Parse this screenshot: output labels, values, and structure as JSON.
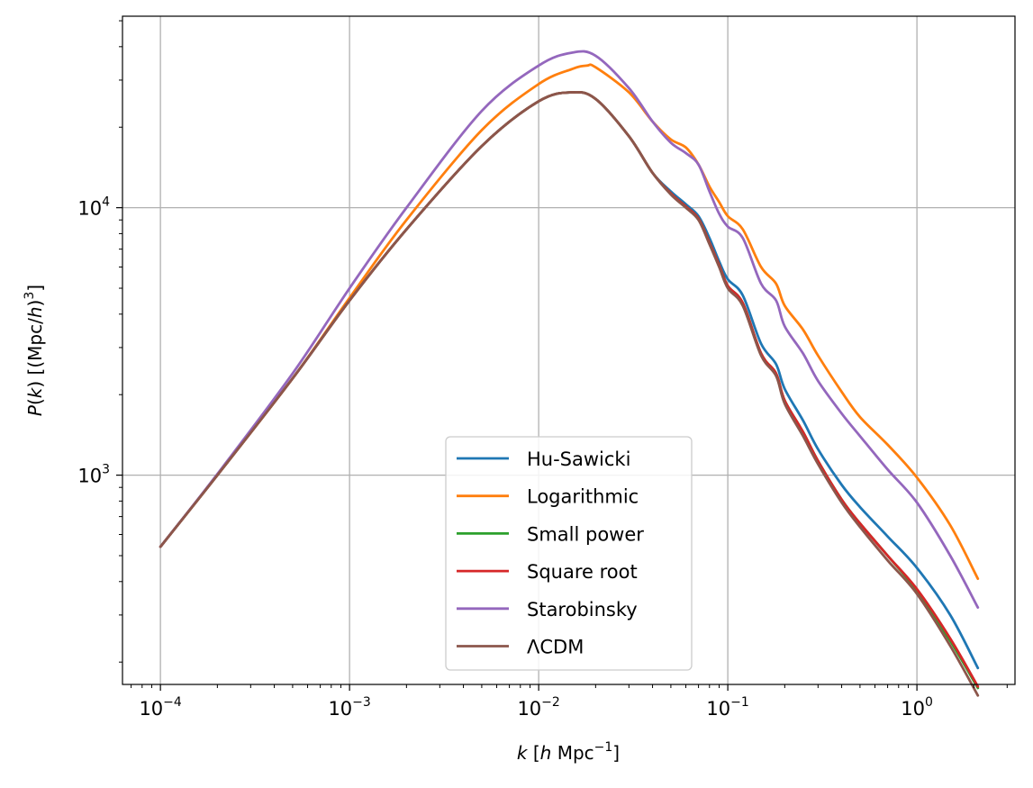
{
  "chart_data": {
    "type": "line",
    "x_scale": "log",
    "y_scale": "log",
    "xlim": [
      6.3e-05,
      3.3
    ],
    "ylim": [
      165,
      52000
    ],
    "grid": true,
    "legend_position": "lower center",
    "xlabel": "k [h Mpc⁻¹]",
    "ylabel": "P(k) [(Mpc/h)³]",
    "x_ticks": [
      {
        "value": 0.0001,
        "mant": "10",
        "exp": "−4"
      },
      {
        "value": 0.001,
        "mant": "10",
        "exp": "−3"
      },
      {
        "value": 0.01,
        "mant": "10",
        "exp": "−2"
      },
      {
        "value": 0.1,
        "mant": "10",
        "exp": "−1"
      },
      {
        "value": 1,
        "mant": "10",
        "exp": "0"
      }
    ],
    "y_ticks": [
      {
        "value": 1000,
        "mant": "10",
        "exp": "3"
      },
      {
        "value": 10000,
        "mant": "10",
        "exp": "4"
      }
    ],
    "series": [
      {
        "name": "Hu-Sawicki",
        "color": "#1f77b4",
        "x": [
          0.0001,
          0.0002,
          0.0005,
          0.001,
          0.002,
          0.005,
          0.01,
          0.015,
          0.02,
          0.03,
          0.04,
          0.05,
          0.06,
          0.07,
          0.08,
          0.09,
          0.1,
          0.12,
          0.15,
          0.18,
          0.2,
          0.25,
          0.3,
          0.4,
          0.5,
          0.7,
          1.0,
          1.5,
          2.1
        ],
        "y": [
          540,
          1000,
          2300,
          4500,
          8300,
          17000,
          25000,
          27000,
          25500,
          18500,
          13500,
          11500,
          10300,
          9300,
          7700,
          6300,
          5400,
          4700,
          3100,
          2600,
          2100,
          1600,
          1250,
          920,
          760,
          590,
          450,
          300,
          190
        ]
      },
      {
        "name": "Logarithmic",
        "color": "#ff7f0e",
        "x": [
          0.0001,
          0.0002,
          0.0005,
          0.001,
          0.002,
          0.005,
          0.01,
          0.015,
          0.018,
          0.02,
          0.03,
          0.04,
          0.05,
          0.06,
          0.07,
          0.08,
          0.09,
          0.1,
          0.12,
          0.15,
          0.18,
          0.2,
          0.25,
          0.3,
          0.4,
          0.5,
          0.7,
          1.0,
          1.5,
          2.1
        ],
        "y": [
          540,
          1000,
          2300,
          4600,
          9000,
          19500,
          29000,
          33000,
          34000,
          33500,
          27000,
          21000,
          18000,
          16800,
          14500,
          12000,
          10500,
          9300,
          8300,
          6000,
          5200,
          4300,
          3500,
          2800,
          2050,
          1650,
          1300,
          980,
          650,
          410
        ]
      },
      {
        "name": "Small power",
        "color": "#2ca02c",
        "x": [
          0.0001,
          0.0002,
          0.0005,
          0.001,
          0.002,
          0.005,
          0.01,
          0.015,
          0.02,
          0.03,
          0.04,
          0.05,
          0.06,
          0.07,
          0.08,
          0.09,
          0.1,
          0.12,
          0.15,
          0.18,
          0.2,
          0.25,
          0.3,
          0.4,
          0.5,
          0.7,
          1.0,
          1.5,
          2.1
        ],
        "y": [
          540,
          1000,
          2300,
          4500,
          8300,
          17000,
          25000,
          27000,
          25500,
          18500,
          13500,
          11300,
          10100,
          9100,
          7400,
          6100,
          5100,
          4400,
          2850,
          2400,
          1900,
          1450,
          1130,
          810,
          660,
          500,
          370,
          240,
          160
        ]
      },
      {
        "name": "Square root",
        "color": "#d62728",
        "x": [
          0.0001,
          0.0002,
          0.0005,
          0.001,
          0.002,
          0.005,
          0.01,
          0.015,
          0.02,
          0.03,
          0.04,
          0.05,
          0.06,
          0.07,
          0.08,
          0.09,
          0.1,
          0.12,
          0.15,
          0.18,
          0.2,
          0.25,
          0.3,
          0.4,
          0.5,
          0.7,
          1.0,
          1.5,
          2.1
        ],
        "y": [
          540,
          1000,
          2300,
          4500,
          8300,
          17000,
          25000,
          27000,
          25500,
          18500,
          13500,
          11300,
          10100,
          9100,
          7400,
          6100,
          5100,
          4400,
          2850,
          2400,
          1900,
          1450,
          1130,
          810,
          660,
          500,
          375,
          245,
          162
        ]
      },
      {
        "name": "Starobinsky",
        "color": "#9467bd",
        "x": [
          0.0001,
          0.0002,
          0.0005,
          0.001,
          0.002,
          0.005,
          0.01,
          0.015,
          0.02,
          0.03,
          0.04,
          0.05,
          0.06,
          0.07,
          0.08,
          0.09,
          0.1,
          0.12,
          0.15,
          0.18,
          0.2,
          0.25,
          0.3,
          0.4,
          0.5,
          0.7,
          1.0,
          1.5,
          2.1
        ],
        "y": [
          540,
          1010,
          2400,
          5000,
          10000,
          23000,
          34000,
          38000,
          37000,
          28000,
          21000,
          17500,
          16000,
          14500,
          11500,
          9500,
          8500,
          7700,
          5200,
          4500,
          3600,
          2850,
          2250,
          1700,
          1400,
          1050,
          790,
          500,
          320
        ]
      },
      {
        "name": "ΛCDM",
        "color": "#8c564b",
        "x": [
          0.0001,
          0.0002,
          0.0005,
          0.001,
          0.002,
          0.005,
          0.01,
          0.015,
          0.02,
          0.03,
          0.04,
          0.05,
          0.06,
          0.07,
          0.08,
          0.09,
          0.1,
          0.12,
          0.15,
          0.18,
          0.2,
          0.25,
          0.3,
          0.4,
          0.5,
          0.7,
          1.0,
          1.5,
          2.1
        ],
        "y": [
          540,
          1000,
          2300,
          4500,
          8300,
          17000,
          25000,
          27000,
          25500,
          18500,
          13500,
          11200,
          10000,
          9000,
          7300,
          6000,
          5000,
          4300,
          2800,
          2350,
          1850,
          1400,
          1100,
          790,
          640,
          480,
          360,
          230,
          150
        ]
      }
    ]
  }
}
